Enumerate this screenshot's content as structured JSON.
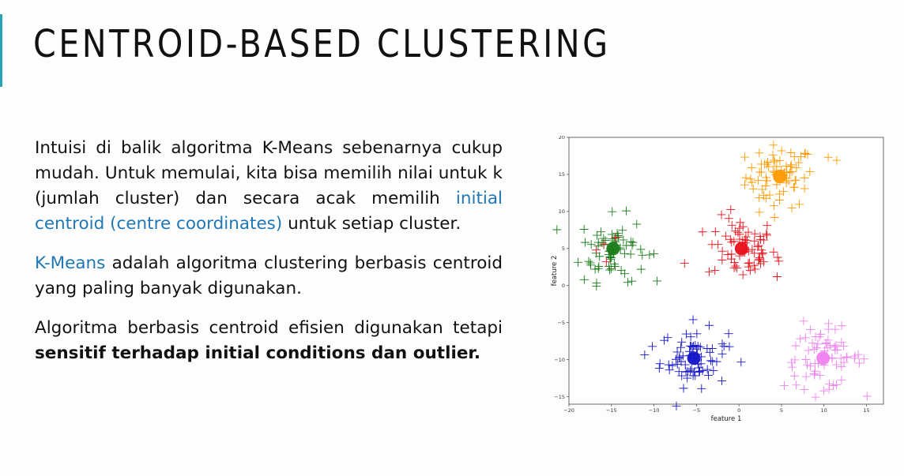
{
  "slide": {
    "title": "CENTROID-BASED CLUSTERING",
    "accent_color": "#2aa3b5"
  },
  "paragraphs": {
    "p1": {
      "before": "Intuisi di balik algoritma K-Means sebenarnya cukup mudah. Untuk memulai, kita bisa memilih nilai untuk k (jumlah cluster) dan secara acak memilih ",
      "highlight": "initial centroid (centre coordinates)",
      "after": " untuk setiap cluster."
    },
    "p2": {
      "highlight": "K-Means",
      "after": " adalah algoritma clustering berbasis centroid yang paling banyak digunakan."
    },
    "p3": {
      "before": "Algoritma berbasis centroid efisien digunakan tetapi ",
      "bold": "sensitif terhadap initial conditions dan outlier."
    },
    "highlight_color": "#1f77b4"
  },
  "chart_data": {
    "type": "scatter",
    "xlabel": "feature 1",
    "ylabel": "feature 2",
    "xlim": [
      -20,
      17
    ],
    "ylim": [
      -16,
      20
    ],
    "xticks": [
      -20,
      -15,
      -10,
      -5,
      0,
      5,
      10,
      15
    ],
    "yticks": [
      -15,
      -10,
      -5,
      0,
      5,
      10,
      15,
      20
    ],
    "marker": "+",
    "clusters": [
      {
        "color": "#ff9900",
        "centroid": [
          4.8,
          14.7
        ],
        "spread": [
          2.0,
          2.1
        ],
        "count": 70,
        "outliers": [
          [
            10.5,
            17.3
          ],
          [
            11.5,
            16.9
          ],
          [
            2.4,
            9.9
          ]
        ]
      },
      {
        "color": "#e8101a",
        "centroid": [
          0.3,
          5.0
        ],
        "spread": [
          2.0,
          2.1
        ],
        "count": 70,
        "outliers": [
          [
            -6.4,
            3.0
          ],
          [
            4.5,
            1.2
          ],
          [
            4.7,
            3.3
          ]
        ]
      },
      {
        "color": "#1a7d1a",
        "centroid": [
          -14.8,
          5.0
        ],
        "spread": [
          1.9,
          2.2
        ],
        "count": 70,
        "outliers": [
          [
            -12.6,
            0.6
          ],
          [
            -18.2,
            0.8
          ],
          [
            -10.0,
            4.3
          ]
        ]
      },
      {
        "color": "#1414c8",
        "centroid": [
          -5.3,
          -9.8
        ],
        "spread": [
          2.0,
          1.9
        ],
        "count": 70,
        "outliers": [
          [
            -10.2,
            -8.2
          ],
          [
            -5.4,
            -4.6
          ],
          [
            -4.4,
            -13.9
          ]
        ]
      },
      {
        "color": "#ee82ee",
        "centroid": [
          9.9,
          -9.8
        ],
        "spread": [
          2.3,
          2.0
        ],
        "count": 70,
        "outliers": [
          [
            14.7,
            -9.9
          ],
          [
            10.6,
            -14.0
          ],
          [
            7.6,
            -4.8
          ]
        ]
      }
    ],
    "red_points_near_green": [
      [
        -16.8,
        4.8
      ],
      [
        -15.6,
        3.2
      ],
      [
        -14.5,
        6.5
      ],
      [
        -15.9,
        5.6
      ]
    ]
  }
}
